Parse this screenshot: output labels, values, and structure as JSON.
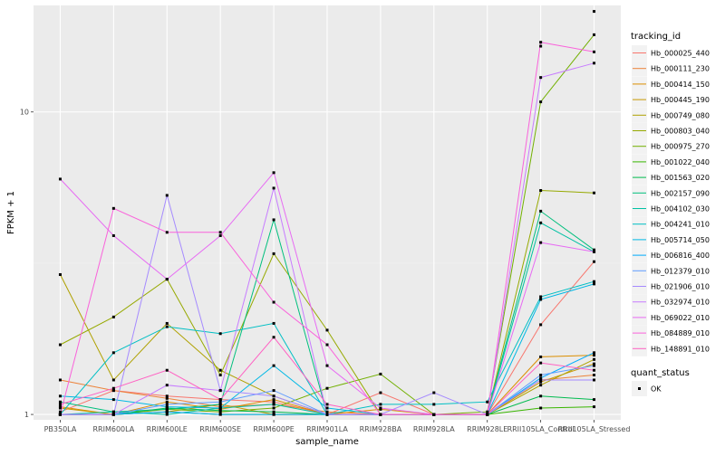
{
  "chart_data": {
    "type": "line",
    "xlabel": "sample_name",
    "ylabel": "FPKM + 1",
    "y_scale": "log10",
    "ylim": [
      0.96,
      22.5
    ],
    "y_ticks": [
      1,
      10
    ],
    "y_tick_labels": [
      "1",
      "10"
    ],
    "grid": true,
    "legend_position": "right",
    "categories": [
      "PB350LA",
      "RRIM600LA",
      "RRIM600LE",
      "RRIM600SE",
      "RRIM600PE",
      "RRIM901LA",
      "RRIM928BA",
      "RRIM928LA",
      "RRIM928LE",
      "RRII105LA_Control",
      "RRII105LA_Stressed"
    ],
    "category_labels": [
      "PB350LA",
      "RRIM600LA",
      "RRIM600LE",
      "RRIM600SE",
      "RRIM600PE",
      "RRIM901LA",
      "RRIM928BA",
      "RRIM928LA",
      "RRIM928LE",
      "RRII105LA_Control",
      "RRII105LA_Stressed"
    ],
    "legend_title": "tracking_id",
    "series": [
      {
        "name": "Hb_000025_440",
        "color": "#F8766D",
        "values": [
          1.02,
          1.2,
          1.15,
          1.12,
          1.1,
          1.0,
          1.18,
          1.0,
          1.0,
          1.98,
          3.2
        ]
      },
      {
        "name": "Hb_000111_230",
        "color": "#EC8239",
        "values": [
          1.3,
          1.2,
          1.13,
          1.06,
          1.08,
          1.02,
          1.0,
          1.0,
          1.0,
          1.3,
          1.35
        ]
      },
      {
        "name": "Hb_000414_150",
        "color": "#DB8E00",
        "values": [
          1.06,
          1.0,
          1.1,
          1.04,
          1.12,
          1.0,
          1.04,
          1.0,
          1.0,
          1.55,
          1.57
        ]
      },
      {
        "name": "Hb_000445_190",
        "color": "#C79800",
        "values": [
          1.05,
          1.0,
          1.02,
          1.08,
          1.0,
          1.0,
          1.0,
          1.0,
          1.0,
          1.28,
          1.47
        ]
      },
      {
        "name": "Hb_000749_080",
        "color": "#AFA100",
        "values": [
          2.9,
          1.3,
          2.0,
          1.4,
          1.15,
          1.0,
          1.0,
          1.0,
          1.0,
          1.25,
          1.52
        ]
      },
      {
        "name": "Hb_000803_040",
        "color": "#96A900",
        "values": [
          1.7,
          2.1,
          2.8,
          1.35,
          3.4,
          1.9,
          1.0,
          1.0,
          1.0,
          5.5,
          5.4
        ]
      },
      {
        "name": "Hb_000975_270",
        "color": "#72B000",
        "values": [
          1.0,
          1.0,
          1.04,
          1.02,
          1.05,
          1.22,
          1.36,
          1.0,
          1.02,
          10.8,
          18.0
        ]
      },
      {
        "name": "Hb_001022_040",
        "color": "#39B600",
        "values": [
          1.0,
          1.0,
          1.02,
          1.0,
          1.0,
          1.0,
          1.0,
          1.0,
          1.0,
          1.05,
          1.06
        ]
      },
      {
        "name": "Hb_001563_020",
        "color": "#00BB4E",
        "values": [
          1.0,
          1.0,
          1.05,
          1.03,
          1.02,
          1.0,
          1.0,
          1.0,
          1.0,
          1.15,
          1.12
        ]
      },
      {
        "name": "Hb_002157_090",
        "color": "#00BF7D",
        "values": [
          1.1,
          1.02,
          1.04,
          1.08,
          4.4,
          1.0,
          1.0,
          1.0,
          1.0,
          4.7,
          3.5
        ]
      },
      {
        "name": "Hb_004102_030",
        "color": "#00C1A3",
        "values": [
          1.0,
          1.02,
          1.0,
          1.05,
          1.08,
          1.0,
          1.0,
          1.0,
          1.0,
          4.3,
          3.45
        ]
      },
      {
        "name": "Hb_004241_010",
        "color": "#00BFC4",
        "values": [
          1.0,
          1.6,
          1.95,
          1.85,
          2.0,
          1.0,
          1.08,
          1.08,
          1.1,
          2.45,
          2.75
        ]
      },
      {
        "name": "Hb_005714_050",
        "color": "#00B8E5",
        "values": [
          1.15,
          1.12,
          1.06,
          1.05,
          1.45,
          1.05,
          1.0,
          1.0,
          1.0,
          2.4,
          2.7
        ]
      },
      {
        "name": "Hb_006816_400",
        "color": "#00ABFD",
        "values": [
          1.0,
          1.0,
          1.02,
          1.0,
          1.0,
          1.0,
          1.0,
          1.0,
          1.0,
          1.32,
          1.6
        ]
      },
      {
        "name": "Hb_012379_010",
        "color": "#619CFF",
        "values": [
          1.0,
          1.0,
          1.08,
          1.1,
          1.2,
          1.0,
          1.0,
          1.0,
          1.0,
          1.35,
          1.45
        ]
      },
      {
        "name": "Hb_021906_010",
        "color": "#A58AFF",
        "values": [
          1.0,
          1.0,
          5.3,
          1.2,
          1.15,
          1.0,
          1.0,
          1.18,
          1.0,
          1.3,
          1.3
        ]
      },
      {
        "name": "Hb_032974_010",
        "color": "#C77CFF",
        "values": [
          1.0,
          1.0,
          1.25,
          1.2,
          5.6,
          1.0,
          1.0,
          1.0,
          1.0,
          13.0,
          14.5
        ]
      },
      {
        "name": "Hb_069022_010",
        "color": "#E76BF3",
        "values": [
          6.0,
          3.9,
          2.8,
          3.9,
          6.3,
          1.45,
          1.05,
          1.0,
          1.0,
          3.7,
          3.45
        ]
      },
      {
        "name": "Hb_084889_010",
        "color": "#FA62DB",
        "values": [
          1.0,
          4.8,
          4.0,
          4.0,
          2.35,
          1.7,
          1.0,
          1.0,
          1.0,
          17.0,
          15.8
        ]
      },
      {
        "name": "Hb_148891_010",
        "color": "#FF61C3",
        "values": [
          1.08,
          1.22,
          1.4,
          1.12,
          1.8,
          1.08,
          1.0,
          1.0,
          1.0,
          1.48,
          1.4
        ]
      }
    ],
    "extra_points": [
      {
        "category": "RRII105LA_Control",
        "value": 16.5
      },
      {
        "category": "RRII105LA_Stressed",
        "value": 21.5
      }
    ],
    "shape_legend": {
      "title": "quant_status",
      "items": [
        "OK"
      ]
    },
    "colors": {
      "panel_bg": "#EBEBEB",
      "grid_major": "#FFFFFF",
      "grid_minor": "#F4F4F4",
      "point": "#000000"
    }
  }
}
